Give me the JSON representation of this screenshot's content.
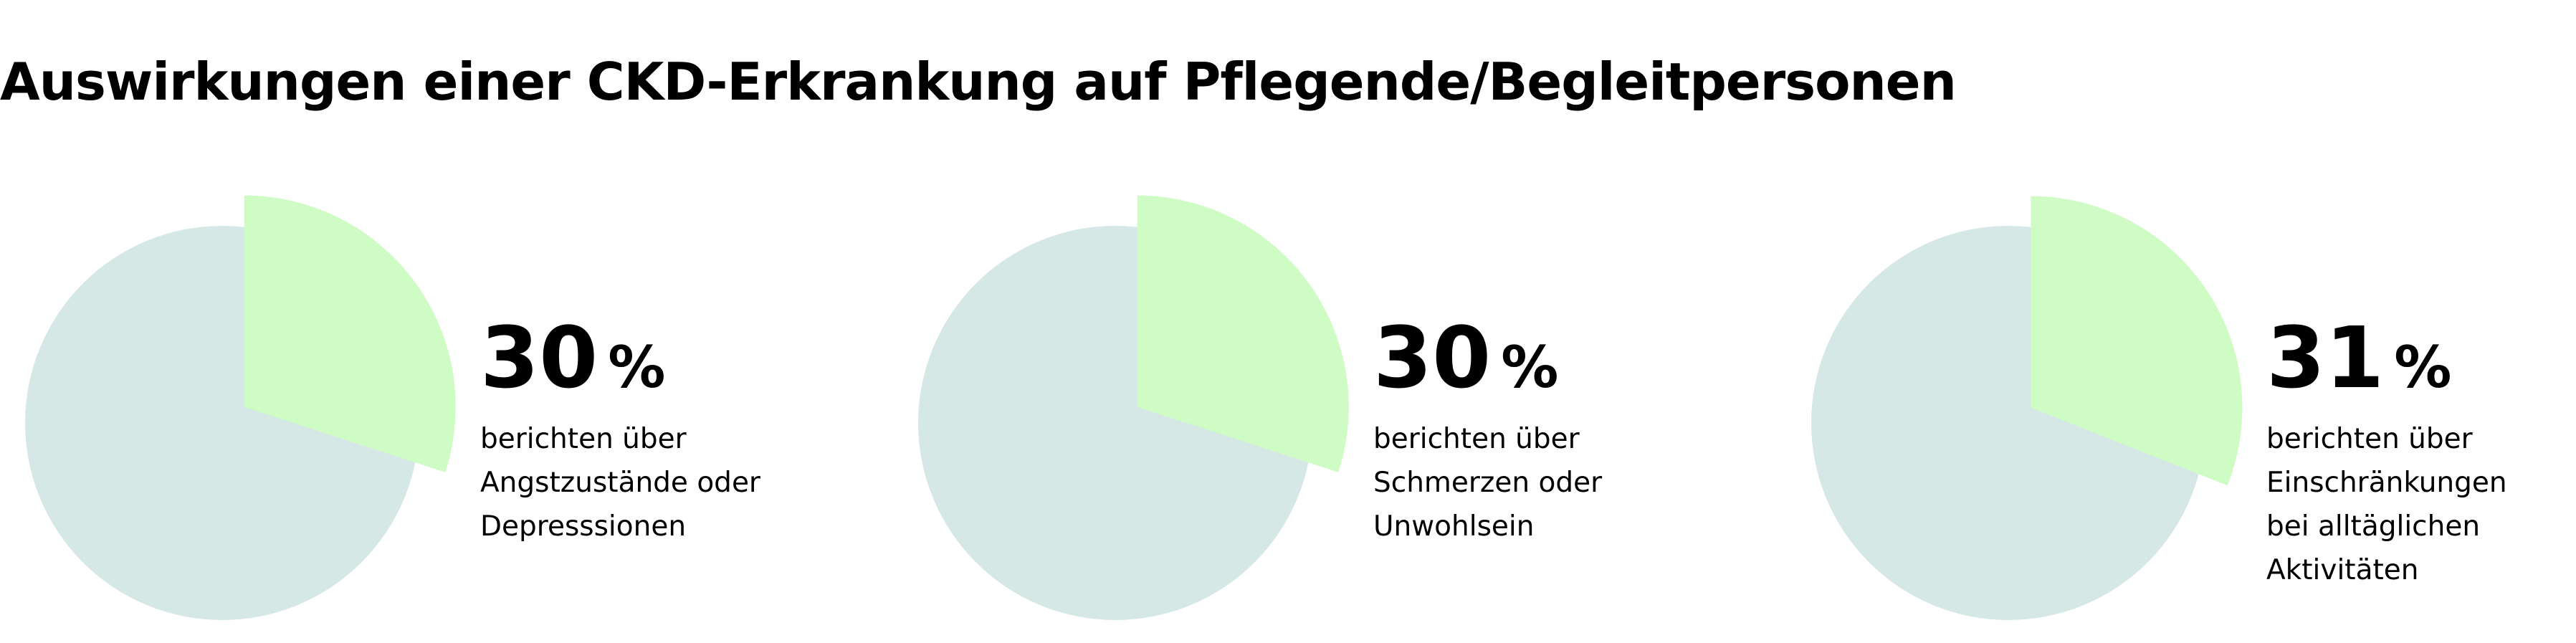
{
  "title": "Auswirkungen einer CKD-Erkrankung auf Pflegende/Begleitpersonen",
  "colors": {
    "highlight": "#CFFCC4",
    "remainder": "#D6E8E6"
  },
  "chart_data": [
    {
      "type": "pie",
      "value": 30,
      "value_text": "30",
      "unit": "%",
      "description": [
        "berichten über",
        "Angstzustände oder",
        "Depresssionen"
      ]
    },
    {
      "type": "pie",
      "value": 30,
      "value_text": "30",
      "unit": "%",
      "description": [
        "berichten über",
        "Schmerzen oder",
        "Unwohlsein"
      ]
    },
    {
      "type": "pie",
      "value": 31,
      "value_text": "31",
      "unit": "%",
      "description": [
        "berichten über",
        "Einschränkungen",
        "bei alltäglichen",
        "Aktivitäten"
      ]
    }
  ]
}
